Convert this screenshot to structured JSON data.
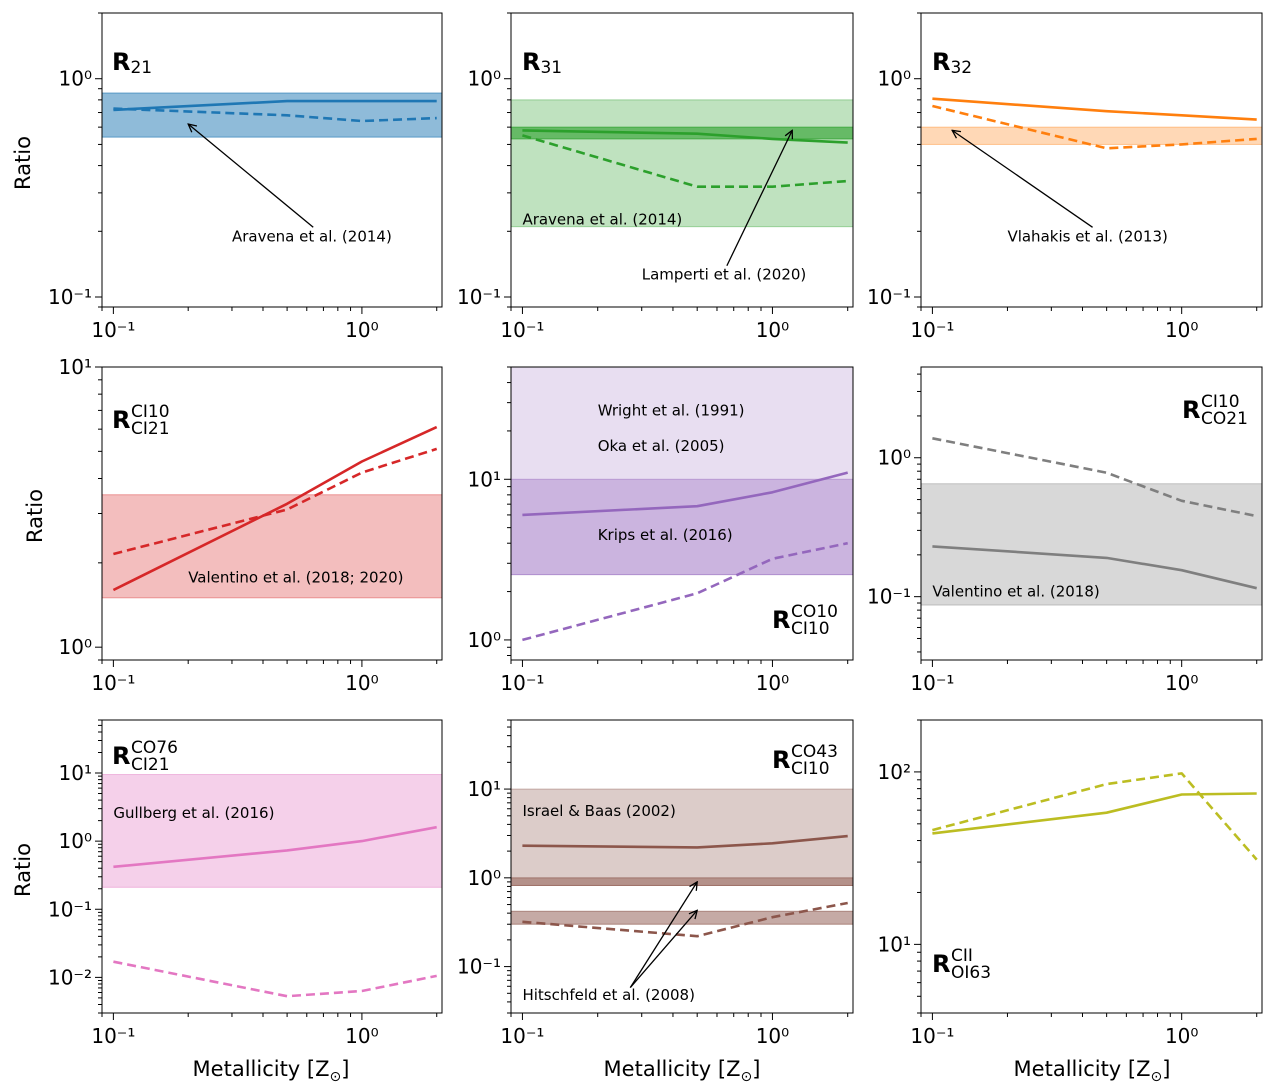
{
  "figure": {
    "xlabel": "Metallicity [Z",
    "xlabel_sub": "⊙",
    "xlabel_close": "]",
    "ylabel": "Ratio"
  },
  "colors": {
    "blue": "#1f77b4",
    "green": "#2ca02c",
    "orange": "#ff7f0e",
    "red": "#d62728",
    "purple": "#9467bd",
    "gray": "#7f7f7f",
    "pink": "#e377c2",
    "brown": "#8c564b",
    "olive": "#bcbd22"
  },
  "chart_data": [
    {
      "type": "line",
      "label": "R",
      "label_sub": "21",
      "label_sup": "",
      "color": "blue",
      "xlim": [
        0.09,
        2.1
      ],
      "ylim": [
        0.09,
        2.0
      ],
      "yticks": [
        {
          "v": 0.1,
          "label": "10⁻¹"
        },
        {
          "v": 1.0,
          "label": "10⁰"
        }
      ],
      "series": [
        {
          "name": "solid",
          "style": "solid",
          "x": [
            0.1,
            0.5,
            1.0,
            2.0
          ],
          "y": [
            0.72,
            0.79,
            0.79,
            0.79
          ]
        },
        {
          "name": "dashed",
          "style": "dashed",
          "x": [
            0.1,
            0.5,
            1.0,
            2.0
          ],
          "y": [
            0.73,
            0.68,
            0.64,
            0.66
          ]
        }
      ],
      "bands": [
        {
          "y0": 0.54,
          "y1": 0.86,
          "color": "blue",
          "alpha": 0.5
        }
      ],
      "annotations": [
        {
          "text": "Aravena et al. (2014)",
          "tx": 0.3,
          "ty": 0.18,
          "ax": 0.2,
          "ay": 0.62,
          "arrow": true
        }
      ]
    },
    {
      "type": "line",
      "label": "R",
      "label_sub": "31",
      "label_sup": "",
      "color": "green",
      "xlim": [
        0.09,
        2.1
      ],
      "ylim": [
        0.09,
        2.0
      ],
      "yticks": [
        {
          "v": 0.1,
          "label": "10⁻¹"
        },
        {
          "v": 1.0,
          "label": "10⁰"
        }
      ],
      "series": [
        {
          "name": "solid",
          "style": "solid",
          "x": [
            0.1,
            0.5,
            1.0,
            2.0
          ],
          "y": [
            0.58,
            0.56,
            0.53,
            0.51
          ]
        },
        {
          "name": "dashed",
          "style": "dashed",
          "x": [
            0.1,
            0.5,
            1.0,
            2.0
          ],
          "y": [
            0.55,
            0.32,
            0.32,
            0.34
          ]
        }
      ],
      "bands": [
        {
          "y0": 0.21,
          "y1": 0.8,
          "color": "green",
          "alpha": 0.3
        },
        {
          "y0": 0.53,
          "y1": 0.6,
          "color": "green",
          "alpha": 0.6
        }
      ],
      "annotations": [
        {
          "text": "Aravena et al. (2014)",
          "tx": 0.1,
          "ty": 0.215,
          "arrow": false
        },
        {
          "text": "Lamperti et al. (2020)",
          "tx": 0.3,
          "ty": 0.12,
          "ax": 1.2,
          "ay": 0.58,
          "arrow": true
        }
      ]
    },
    {
      "type": "line",
      "label": "R",
      "label_sub": "32",
      "label_sup": "",
      "color": "orange",
      "xlim": [
        0.09,
        2.1
      ],
      "ylim": [
        0.09,
        2.0
      ],
      "yticks": [
        {
          "v": 0.1,
          "label": "10⁻¹"
        },
        {
          "v": 1.0,
          "label": "10⁰"
        }
      ],
      "series": [
        {
          "name": "solid",
          "style": "solid",
          "x": [
            0.1,
            0.5,
            1.0,
            2.0
          ],
          "y": [
            0.81,
            0.71,
            0.68,
            0.65
          ]
        },
        {
          "name": "dashed",
          "style": "dashed",
          "x": [
            0.1,
            0.5,
            1.0,
            2.0
          ],
          "y": [
            0.75,
            0.48,
            0.5,
            0.53
          ]
        }
      ],
      "bands": [
        {
          "y0": 0.5,
          "y1": 0.6,
          "color": "orange",
          "alpha": 0.3
        }
      ],
      "annotations": [
        {
          "text": "Vlahakis et al. (2013)",
          "tx": 0.2,
          "ty": 0.18,
          "ax": 0.12,
          "ay": 0.58,
          "arrow": true
        }
      ]
    },
    {
      "type": "line",
      "label": "R",
      "label_sub": "CI21",
      "label_sup": "CI10",
      "color": "red",
      "xlim": [
        0.09,
        2.1
      ],
      "ylim": [
        0.9,
        10.0
      ],
      "yticks": [
        {
          "v": 1.0,
          "label": "10⁰"
        },
        {
          "v": 10.0,
          "label": "10¹"
        }
      ],
      "series": [
        {
          "name": "solid",
          "style": "solid",
          "x": [
            0.1,
            0.5,
            1.0,
            2.0
          ],
          "y": [
            1.6,
            3.25,
            4.6,
            6.1
          ]
        },
        {
          "name": "dashed",
          "style": "dashed",
          "x": [
            0.1,
            0.5,
            1.0,
            2.0
          ],
          "y": [
            2.15,
            3.1,
            4.2,
            5.1
          ]
        }
      ],
      "bands": [
        {
          "y0": 1.5,
          "y1": 3.5,
          "color": "red",
          "alpha": 0.3
        }
      ],
      "annotations": [
        {
          "text": "Valentino et al. (2018; 2020)",
          "tx": 0.2,
          "ty": 1.7,
          "arrow": false
        }
      ]
    },
    {
      "type": "line",
      "label": "R",
      "label_sub": "CI10",
      "label_sup": "CO10",
      "color": "purple",
      "xlim": [
        0.09,
        2.1
      ],
      "ylim": [
        0.75,
        50.0
      ],
      "yticks": [
        {
          "v": 1.0,
          "label": "10⁰"
        },
        {
          "v": 10.0,
          "label": "10¹"
        }
      ],
      "series": [
        {
          "name": "solid",
          "style": "solid",
          "x": [
            0.1,
            0.5,
            1.0,
            2.0
          ],
          "y": [
            6.0,
            6.8,
            8.3,
            11.0
          ]
        },
        {
          "name": "dashed",
          "style": "dashed",
          "x": [
            0.1,
            0.5,
            1.0,
            2.0
          ],
          "y": [
            1.0,
            1.95,
            3.2,
            4.0
          ]
        }
      ],
      "bands": [
        {
          "y0": 2.55,
          "y1": 50.0,
          "color": "purple",
          "alpha": 0.22
        },
        {
          "y0": 2.55,
          "y1": 10.0,
          "color": "purple",
          "alpha": 0.35
        }
      ],
      "annotations": [
        {
          "text": "Wright et al. (1991)",
          "tx": 0.2,
          "ty": 25.0,
          "arrow": false
        },
        {
          "text": "Oka et al. (2005)",
          "tx": 0.2,
          "ty": 15.0,
          "arrow": false
        },
        {
          "text": "Krips et al. (2016)",
          "tx": 0.2,
          "ty": 4.2,
          "arrow": false
        }
      ]
    },
    {
      "type": "line",
      "label": "R",
      "label_sub": "CO21",
      "label_sup": "CI10",
      "color": "gray",
      "xlim": [
        0.09,
        2.1
      ],
      "ylim": [
        0.035,
        4.5
      ],
      "yticks": [
        {
          "v": 0.1,
          "label": "10⁻¹"
        },
        {
          "v": 1.0,
          "label": "10⁰"
        }
      ],
      "series": [
        {
          "name": "solid",
          "style": "solid",
          "x": [
            0.1,
            0.5,
            1.0,
            2.0
          ],
          "y": [
            0.23,
            0.19,
            0.155,
            0.115
          ]
        },
        {
          "name": "dashed",
          "style": "dashed",
          "x": [
            0.1,
            0.5,
            1.0,
            2.0
          ],
          "y": [
            1.38,
            0.78,
            0.49,
            0.38
          ]
        }
      ],
      "bands": [
        {
          "y0": 0.087,
          "y1": 0.65,
          "color": "gray",
          "alpha": 0.3
        }
      ],
      "annotations": [
        {
          "text": "Valentino et al. (2018)",
          "tx": 0.1,
          "ty": 0.1,
          "arrow": false
        }
      ]
    },
    {
      "type": "line",
      "label": "R",
      "label_sub": "CI21",
      "label_sup": "CO76",
      "color": "pink",
      "xlim": [
        0.09,
        2.1
      ],
      "ylim": [
        0.003,
        60.0
      ],
      "yticks": [
        {
          "v": 0.01,
          "label": "10⁻²"
        },
        {
          "v": 0.1,
          "label": "10⁻¹"
        },
        {
          "v": 1.0,
          "label": "10⁰"
        },
        {
          "v": 10.0,
          "label": "10¹"
        }
      ],
      "series": [
        {
          "name": "solid",
          "style": "solid",
          "x": [
            0.1,
            0.5,
            1.0,
            2.0
          ],
          "y": [
            0.42,
            0.73,
            1.0,
            1.6
          ]
        },
        {
          "name": "dashed",
          "style": "dashed",
          "x": [
            0.1,
            0.5,
            1.0,
            2.0
          ],
          "y": [
            0.017,
            0.0053,
            0.0063,
            0.0105
          ]
        }
      ],
      "bands": [
        {
          "y0": 0.21,
          "y1": 9.5,
          "color": "pink",
          "alpha": 0.35
        }
      ],
      "annotations": [
        {
          "text": "Gullberg et al. (2016)",
          "tx": 0.1,
          "ty": 2.2,
          "arrow": false
        }
      ]
    },
    {
      "type": "line",
      "label": "R",
      "label_sub": "CI10",
      "label_sup": "CO43",
      "color": "brown",
      "xlim": [
        0.09,
        2.1
      ],
      "ylim": [
        0.03,
        60.0
      ],
      "yticks": [
        {
          "v": 0.1,
          "label": "10⁻¹"
        },
        {
          "v": 1.0,
          "label": "10⁰"
        },
        {
          "v": 10.0,
          "label": "10¹"
        }
      ],
      "series": [
        {
          "name": "solid",
          "style": "solid",
          "x": [
            0.1,
            0.5,
            1.0,
            2.0
          ],
          "y": [
            2.3,
            2.2,
            2.45,
            2.95
          ]
        },
        {
          "name": "dashed",
          "style": "dashed",
          "x": [
            0.1,
            0.5,
            1.0,
            2.0
          ],
          "y": [
            0.32,
            0.22,
            0.36,
            0.52
          ]
        }
      ],
      "bands": [
        {
          "y0": 0.82,
          "y1": 10.0,
          "color": "brown",
          "alpha": 0.3
        },
        {
          "y0": 0.82,
          "y1": 1.0,
          "color": "brown",
          "alpha": 0.5
        },
        {
          "y0": 0.3,
          "y1": 0.42,
          "color": "brown",
          "alpha": 0.5
        }
      ],
      "annotations": [
        {
          "text": "Israel & Baas (2002)",
          "tx": 0.1,
          "ty": 5.0,
          "arrow": false
        },
        {
          "text": "Hitschfeld et al. (2008)",
          "tx": 0.1,
          "ty": 0.042,
          "arrow": false
        },
        {
          "text": "",
          "tx": 0.27,
          "ty": 0.058,
          "ax": 0.5,
          "ay": 0.9,
          "arrow": true
        },
        {
          "text": "",
          "tx": 0.27,
          "ty": 0.058,
          "ax": 0.5,
          "ay": 0.43,
          "arrow": true
        }
      ]
    },
    {
      "type": "line",
      "label": "R",
      "label_sub": "OI63",
      "label_sup": "CII",
      "color": "olive",
      "xlim": [
        0.09,
        2.1
      ],
      "ylim": [
        4.0,
        200.0
      ],
      "yticks": [
        {
          "v": 10.0,
          "label": "10¹"
        },
        {
          "v": 100.0,
          "label": "10²"
        }
      ],
      "series": [
        {
          "name": "solid",
          "style": "solid",
          "x": [
            0.1,
            0.5,
            1.0,
            2.0
          ],
          "y": [
            44.0,
            58.0,
            74.0,
            75.0
          ]
        },
        {
          "name": "dashed",
          "style": "dashed",
          "x": [
            0.1,
            0.5,
            1.0,
            2.0
          ],
          "y": [
            46.0,
            85.0,
            98.0,
            31.0
          ]
        }
      ],
      "bands": [],
      "annotations": []
    }
  ]
}
